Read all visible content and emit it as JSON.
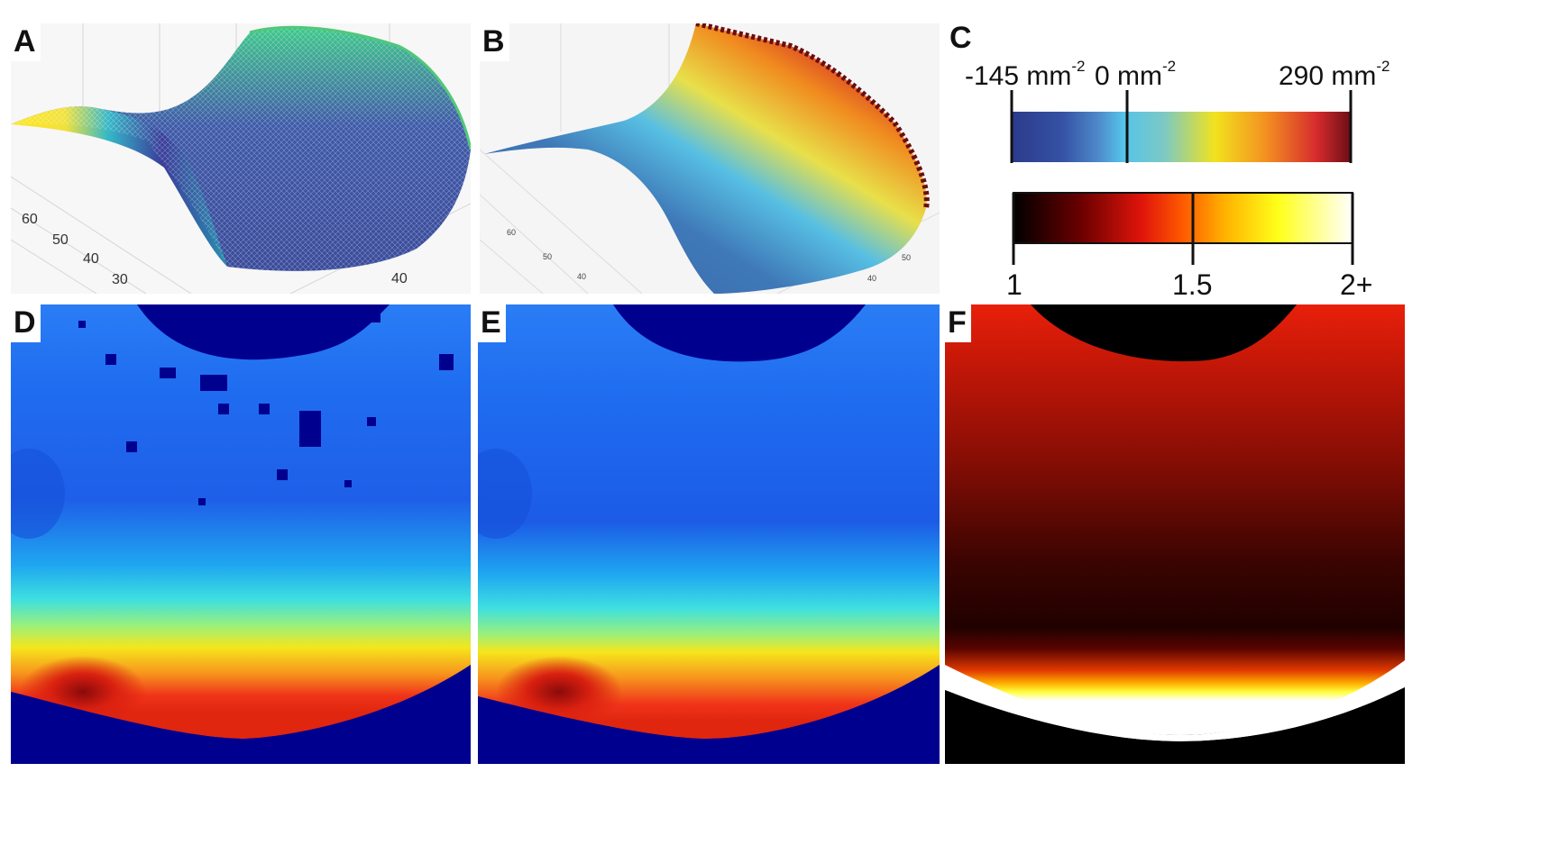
{
  "panels": {
    "A": {
      "label": "A",
      "ticks_y": [
        "60",
        "50",
        "40",
        "30"
      ],
      "ticks_x": [
        "40"
      ]
    },
    "B": {
      "label": "B",
      "ticks_y": [
        "60",
        "50",
        "40"
      ],
      "ticks_x": [
        "50",
        "40"
      ]
    },
    "C": {
      "label": "C",
      "colorbar1": {
        "min_value": "-145",
        "mid_value": "0",
        "max_value": "290",
        "unit": "mm",
        "exponent": "-2"
      },
      "colorbar2": {
        "tick_labels": [
          "1",
          "1.5",
          "2+"
        ]
      }
    },
    "D": {
      "label": "D"
    },
    "E": {
      "label": "E"
    },
    "F": {
      "label": "F"
    }
  },
  "colors": {
    "background_blue": "#00008f",
    "curvature_scale": [
      "#2c3a8c",
      "#3d6bb5",
      "#56c3ea",
      "#a8d29b",
      "#f7e21a",
      "#f08a1f",
      "#c81e29",
      "#5e0c12"
    ],
    "ratio_scale": [
      "#000000",
      "#8b0000",
      "#ff1a00",
      "#ff8c00",
      "#ffff00",
      "#ffffff"
    ]
  }
}
